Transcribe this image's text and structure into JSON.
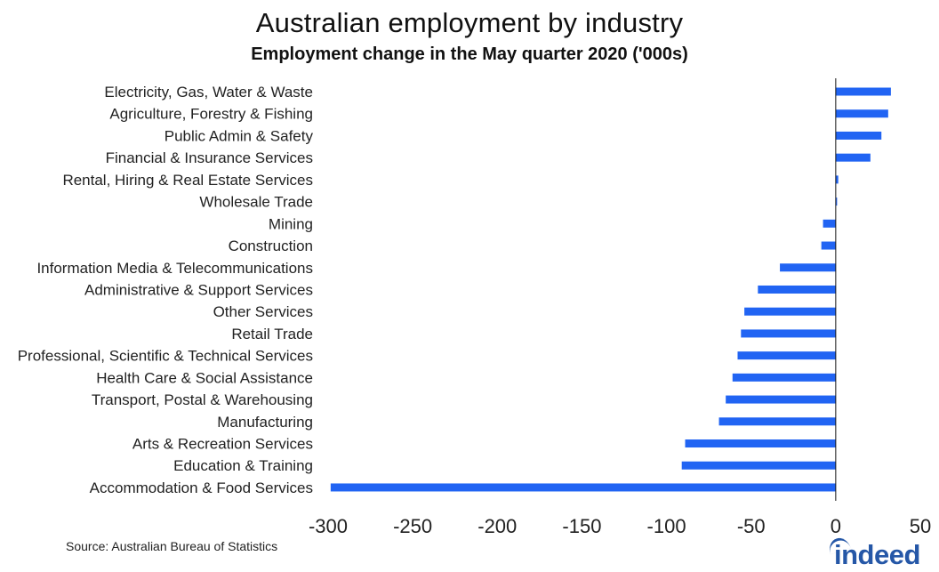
{
  "chart_data": {
    "type": "bar",
    "orientation": "horizontal",
    "title": "Australian employment by industry",
    "subtitle": "Employment change in the May quarter 2020 ('000s)",
    "xlim": [
      -300,
      50
    ],
    "xticks": [
      -300,
      -250,
      -200,
      -150,
      -100,
      -50,
      0,
      50
    ],
    "xtick_labels": [
      "-300",
      "-250",
      "-200",
      "-150",
      "-100",
      "-50",
      "0",
      "50"
    ],
    "bar_color": "#2164f3",
    "categories": [
      "Electricity, Gas, Water & Waste",
      "Agriculture, Forestry & Fishing",
      "Public Admin & Safety",
      "Financial & Insurance Services",
      "Rental, Hiring & Real Estate Services",
      "Wholesale Trade",
      "Mining",
      "Construction",
      "Information Media & Telecommunications",
      "Administrative & Support Services",
      "Other Services",
      "Retail Trade",
      "Professional, Scientific & Technical Services",
      "Health Care & Social Assistance",
      "Transport, Postal & Warehousing",
      "Manufacturing",
      "Arts & Recreation Services",
      "Education & Training",
      "Accommodation & Food Services"
    ],
    "values": [
      32.6,
      31,
      27,
      20.5,
      1.5,
      0.8,
      -7.5,
      -8.5,
      -33,
      -46,
      -54,
      -56,
      -58,
      -61,
      -65,
      -69,
      -89,
      -91,
      -298.5
    ]
  },
  "source": "Source: Australian Bureau of Statistics",
  "logo": {
    "text": "indeed",
    "color": "#2557a7"
  }
}
